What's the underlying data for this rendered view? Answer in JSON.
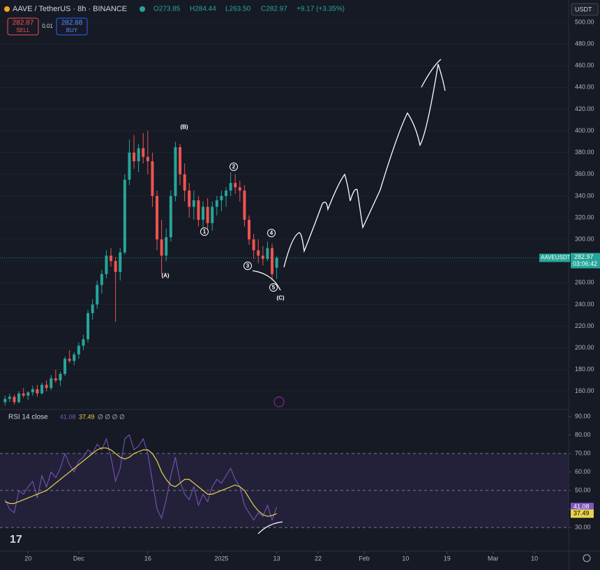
{
  "header": {
    "symbol": "AAVE / TetherUS · 8h · BINANCE",
    "open": "O273.85",
    "high": "H284.44",
    "low": "L263.50",
    "close": "C282.97",
    "change": "+9.17 (+3.35%)",
    "sell_price": "282.87",
    "sell": "SELL",
    "spread": "0.01",
    "buy_price": "282.88",
    "buy": "BUY",
    "currency": "USDT",
    "price_tag": "AAVEUSDT",
    "price": "282.97",
    "timer": "03:06:42"
  },
  "annotations": [
    "(B)",
    "(A)",
    "(C)",
    "1",
    "2",
    "3",
    "4",
    "5"
  ],
  "chart_data": [
    {
      "type": "candlestick",
      "up_color": "#26a69a",
      "down_color": "#ef5350",
      "x": [
        15,
        16,
        17,
        18,
        19,
        20,
        21,
        22,
        23,
        24,
        25,
        26,
        27,
        28,
        29,
        30,
        31,
        32,
        33,
        34,
        35,
        36,
        37,
        38,
        39,
        40,
        41,
        42,
        43,
        44,
        45,
        46,
        47,
        48,
        49,
        50,
        51,
        52,
        53,
        54,
        55,
        56,
        57,
        58,
        59,
        60,
        61,
        62,
        63,
        64,
        65,
        66,
        67,
        68,
        69,
        70,
        71,
        72,
        73,
        74
      ],
      "ohlc": [
        [
          150,
          156,
          147,
          153
        ],
        [
          153,
          158,
          150,
          155
        ],
        [
          155,
          157,
          148,
          150
        ],
        [
          150,
          160,
          149,
          158
        ],
        [
          158,
          163,
          154,
          156
        ],
        [
          156,
          160,
          152,
          159
        ],
        [
          159,
          165,
          156,
          162
        ],
        [
          162,
          166,
          155,
          158
        ],
        [
          158,
          168,
          157,
          166
        ],
        [
          166,
          170,
          160,
          163
        ],
        [
          163,
          175,
          161,
          172
        ],
        [
          172,
          180,
          168,
          170
        ],
        [
          170,
          178,
          165,
          176
        ],
        [
          176,
          192,
          174,
          190
        ],
        [
          190,
          198,
          186,
          188
        ],
        [
          188,
          196,
          184,
          194
        ],
        [
          194,
          205,
          190,
          202
        ],
        [
          202,
          212,
          198,
          208
        ],
        [
          208,
          235,
          205,
          232
        ],
        [
          232,
          245,
          226,
          240
        ],
        [
          240,
          262,
          236,
          258
        ],
        [
          258,
          272,
          250,
          268
        ],
        [
          268,
          290,
          264,
          285
        ],
        [
          285,
          292,
          275,
          280
        ],
        [
          280,
          284,
          224,
          270
        ],
        [
          270,
          292,
          262,
          288
        ],
        [
          288,
          360,
          286,
          355
        ],
        [
          355,
          392,
          350,
          380
        ],
        [
          380,
          396,
          365,
          372
        ],
        [
          372,
          388,
          362,
          384
        ],
        [
          384,
          398,
          370,
          376
        ],
        [
          376,
          400,
          360,
          372
        ],
        [
          372,
          380,
          330,
          340
        ],
        [
          340,
          345,
          290,
          300
        ],
        [
          300,
          318,
          268,
          285
        ],
        [
          285,
          310,
          280,
          302
        ],
        [
          302,
          345,
          298,
          340
        ],
        [
          340,
          390,
          335,
          385
        ],
        [
          385,
          388,
          350,
          360
        ],
        [
          360,
          370,
          335,
          345
        ],
        [
          345,
          352,
          320,
          330
        ],
        [
          330,
          345,
          318,
          336
        ],
        [
          336,
          340,
          312,
          318
        ],
        [
          318,
          335,
          310,
          330
        ],
        [
          330,
          338,
          310,
          315
        ],
        [
          315,
          335,
          308,
          330
        ],
        [
          330,
          340,
          322,
          336
        ],
        [
          336,
          345,
          326,
          340
        ],
        [
          340,
          348,
          330,
          345
        ],
        [
          345,
          362,
          340,
          352
        ],
        [
          352,
          360,
          342,
          348
        ],
        [
          348,
          354,
          335,
          345
        ],
        [
          345,
          350,
          312,
          318
        ],
        [
          318,
          322,
          295,
          300
        ],
        [
          300,
          305,
          282,
          290
        ],
        [
          290,
          300,
          278,
          285
        ],
        [
          285,
          294,
          276,
          282
        ],
        [
          282,
          298,
          280,
          292
        ],
        [
          292,
          296,
          262,
          268
        ],
        [
          273.85,
          284.44,
          263.5,
          282.97
        ]
      ],
      "last": 282.97,
      "xlim": [
        13.9,
        137.4
      ],
      "ylim": [
        143.2,
        520.6
      ],
      "yticks": [
        {
          "value": 160,
          "label": "160.00"
        },
        {
          "value": 180,
          "label": "180.00"
        },
        {
          "value": 200,
          "label": "200.00"
        },
        {
          "value": 220,
          "label": "220.00"
        },
        {
          "value": 240,
          "label": "240.00"
        },
        {
          "value": 260,
          "label": "260.00"
        },
        {
          "value": 280,
          "label": "280.00"
        },
        {
          "value": 300,
          "label": "300.00"
        },
        {
          "value": 320,
          "label": "320.00"
        },
        {
          "value": 340,
          "label": "340.00"
        },
        {
          "value": 360,
          "label": "360.00"
        },
        {
          "value": 380,
          "label": "380.00"
        },
        {
          "value": 400,
          "label": "400.00"
        },
        {
          "value": 420,
          "label": "420.00"
        },
        {
          "value": 440,
          "label": "440.00"
        },
        {
          "value": 460,
          "label": "460.00"
        },
        {
          "value": 480,
          "label": "480.00"
        },
        {
          "value": 500,
          "label": "500.00"
        }
      ]
    },
    {
      "type": "line",
      "title": "RSI 14 close",
      "extra": "∅ ∅ ∅ ∅",
      "x": [
        15,
        16,
        17,
        18,
        19,
        20,
        21,
        22,
        23,
        24,
        25,
        26,
        27,
        28,
        29,
        30,
        31,
        32,
        33,
        34,
        35,
        36,
        37,
        38,
        39,
        40,
        41,
        42,
        43,
        44,
        45,
        46,
        47,
        48,
        49,
        50,
        51,
        52,
        53,
        54,
        55,
        56,
        57,
        58,
        59,
        60,
        61,
        62,
        63,
        64,
        65,
        66,
        67,
        68,
        69,
        70,
        71,
        72,
        73,
        74
      ],
      "series": [
        {
          "name": "41.08",
          "color": "#7e57c2",
          "values": [
            45,
            40,
            38,
            50,
            48,
            52,
            55,
            46,
            58,
            52,
            60,
            57,
            62,
            70,
            64,
            60,
            66,
            68,
            72,
            70,
            75,
            72,
            78,
            68,
            55,
            62,
            78,
            80,
            72,
            74,
            78,
            70,
            55,
            40,
            35,
            45,
            58,
            68,
            55,
            48,
            45,
            52,
            42,
            48,
            44,
            52,
            56,
            54,
            58,
            62,
            56,
            52,
            42,
            38,
            34,
            38,
            36,
            42,
            34,
            41.08
          ]
        },
        {
          "name": "37.49",
          "color": "#e8d44d",
          "values": [
            44,
            43,
            43,
            44,
            45,
            46,
            47,
            48,
            49,
            50,
            52,
            54,
            56,
            58,
            60,
            62,
            64,
            66,
            68,
            70,
            72,
            73,
            73,
            72,
            70,
            68,
            67,
            68,
            70,
            71,
            72,
            72,
            70,
            66,
            60,
            56,
            53,
            52,
            54,
            56,
            56,
            54,
            52,
            50,
            48,
            48,
            49,
            50,
            51,
            52,
            53,
            52,
            50,
            46,
            42,
            39,
            37,
            36,
            36.5,
            37.49
          ]
        }
      ],
      "band": [
        30,
        70
      ],
      "midline": 50,
      "xlim": [
        13.9,
        137.4
      ],
      "ylim": [
        17.2,
        93.4
      ],
      "yticks": [
        {
          "value": 30,
          "label": "30.00"
        },
        {
          "value": 40,
          "label": "40.00"
        },
        {
          "value": 50,
          "label": "50.00"
        },
        {
          "value": 60,
          "label": "60.00"
        },
        {
          "value": 70,
          "label": "70.00"
        },
        {
          "value": 80,
          "label": "80.00"
        },
        {
          "value": 90,
          "label": "90.00"
        }
      ],
      "xticks": [
        {
          "value": 20,
          "label": "20"
        },
        {
          "value": 31,
          "label": "Dec"
        },
        {
          "value": 46,
          "label": "16"
        },
        {
          "value": 62,
          "label": "2025"
        },
        {
          "value": 74,
          "label": "13"
        },
        {
          "value": 83,
          "label": "22"
        },
        {
          "value": 93,
          "label": "Feb"
        },
        {
          "value": 102,
          "label": "10"
        },
        {
          "value": 111,
          "label": "19"
        },
        {
          "value": 121,
          "label": "Mar"
        },
        {
          "value": 130,
          "label": "10"
        }
      ]
    }
  ]
}
